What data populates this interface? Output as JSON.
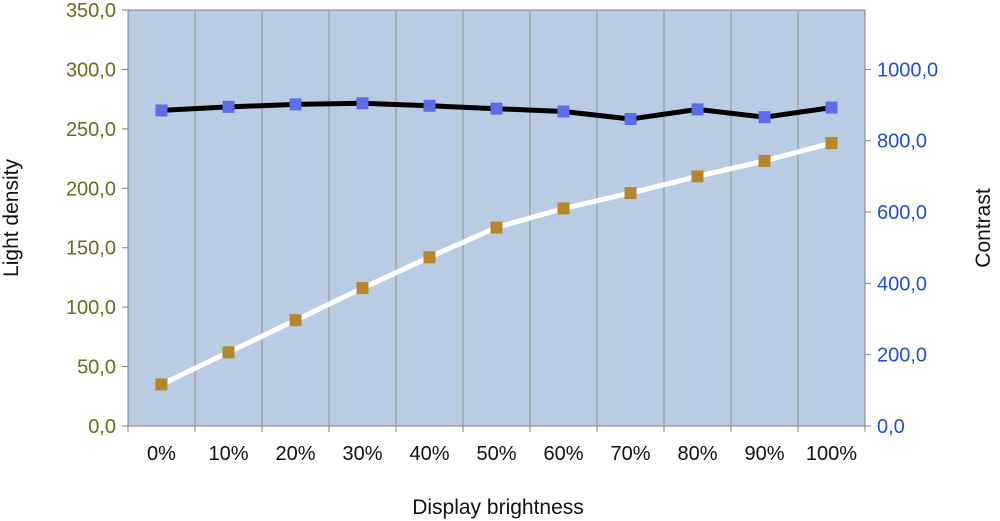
{
  "chart_data": {
    "type": "line",
    "x_title": "Display brightness",
    "y_left_title": "Light density",
    "y_right_title": "Contrast",
    "categories": [
      "0%",
      "10%",
      "20%",
      "30%",
      "40%",
      "50%",
      "60%",
      "70%",
      "80%",
      "90%",
      "100%"
    ],
    "y_left": {
      "range": [
        0,
        350
      ],
      "ticks": [
        0,
        50,
        100,
        150,
        200,
        250,
        300,
        350
      ],
      "tick_labels": [
        "0,0",
        "50,0",
        "100,0",
        "150,0",
        "200,0",
        "250,0",
        "300,0",
        "350,0"
      ],
      "color": "#6b6b1f"
    },
    "y_right": {
      "range": [
        0,
        1166.67
      ],
      "ticks": [
        0,
        200,
        400,
        600,
        800,
        1000
      ],
      "tick_labels": [
        "0,0",
        "200,0",
        "400,0",
        "600,0",
        "800,0",
        "1000,0"
      ],
      "color": "#1f4fd6"
    },
    "series": [
      {
        "axis": "left",
        "line_color": "#ffffff",
        "marker_color": "#b8862a",
        "values": [
          35,
          62,
          89,
          116,
          142,
          167,
          183,
          196,
          210,
          223,
          238
        ]
      },
      {
        "axis": "right",
        "line_color": "#000000",
        "marker_color": "#5b6ee8",
        "values": [
          885,
          895,
          902,
          905,
          898,
          890,
          882,
          861,
          888,
          866,
          893
        ]
      }
    ],
    "plot_background": "#b9cce3",
    "grid": "vertical",
    "legend": "none"
  }
}
